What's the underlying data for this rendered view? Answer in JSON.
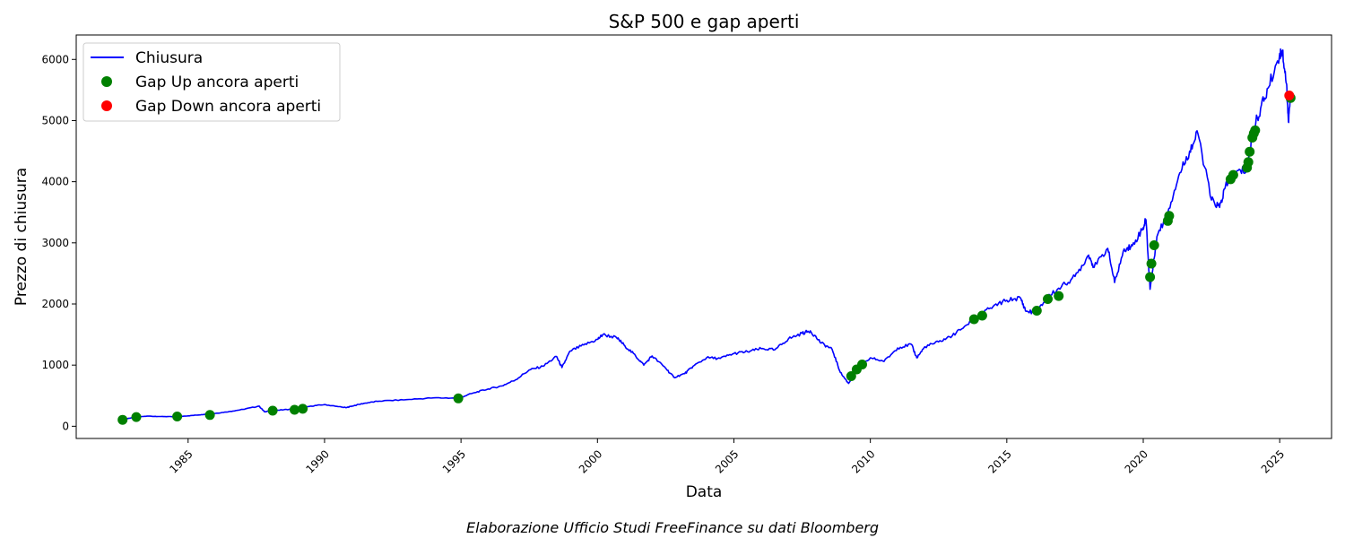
{
  "chart_data": {
    "type": "line",
    "title": "S&P 500 e gap aperti",
    "xlabel": "Data",
    "ylabel": "Prezzo di chiusura",
    "caption": "Elaborazione Ufficio Studi FreeFinance su dati Bloomberg",
    "xlim": [
      1980.9,
      2026.9
    ],
    "ylim": [
      -200,
      6400
    ],
    "x_ticks": [
      1985,
      1990,
      1995,
      2000,
      2005,
      2010,
      2015,
      2020,
      2025
    ],
    "x_tick_labels": [
      "1985",
      "1990",
      "1995",
      "2000",
      "2005",
      "2010",
      "2015",
      "2020",
      "2025"
    ],
    "x_tick_rotation": 45,
    "y_ticks": [
      0,
      1000,
      2000,
      3000,
      4000,
      5000,
      6000
    ],
    "y_tick_labels": [
      "0",
      "1000",
      "2000",
      "3000",
      "4000",
      "5000",
      "6000"
    ],
    "grid": false,
    "legend": {
      "placement": "top-left",
      "entries": [
        {
          "label": "Chiusura",
          "marker": "line",
          "color": "#0000ff"
        },
        {
          "label": "Gap Up ancora aperti",
          "marker": "dot",
          "color": "#008000"
        },
        {
          "label": "Gap Down ancora aperti",
          "marker": "dot",
          "color": "#ff0000"
        }
      ]
    },
    "series": [
      {
        "name": "Chiusura",
        "kind": "line",
        "color": "#0000ff",
        "points": [
          [
            1982.6,
            110
          ],
          [
            1983.0,
            145
          ],
          [
            1983.5,
            165
          ],
          [
            1984.0,
            160
          ],
          [
            1984.5,
            155
          ],
          [
            1985.0,
            170
          ],
          [
            1985.5,
            190
          ],
          [
            1986.0,
            210
          ],
          [
            1986.5,
            240
          ],
          [
            1987.0,
            275
          ],
          [
            1987.6,
            330
          ],
          [
            1987.8,
            235
          ],
          [
            1988.0,
            255
          ],
          [
            1988.5,
            270
          ],
          [
            1989.0,
            285
          ],
          [
            1989.5,
            330
          ],
          [
            1990.0,
            355
          ],
          [
            1990.5,
            320
          ],
          [
            1990.8,
            305
          ],
          [
            1991.0,
            330
          ],
          [
            1991.5,
            380
          ],
          [
            1992.0,
            410
          ],
          [
            1993.0,
            435
          ],
          [
            1994.0,
            465
          ],
          [
            1994.9,
            460
          ],
          [
            1995.5,
            550
          ],
          [
            1996.0,
            610
          ],
          [
            1996.5,
            660
          ],
          [
            1997.0,
            760
          ],
          [
            1997.5,
            920
          ],
          [
            1998.0,
            980
          ],
          [
            1998.5,
            1140
          ],
          [
            1998.7,
            960
          ],
          [
            1999.0,
            1230
          ],
          [
            1999.5,
            1330
          ],
          [
            2000.0,
            1420
          ],
          [
            2000.2,
            1500
          ],
          [
            2000.7,
            1450
          ],
          [
            2001.0,
            1320
          ],
          [
            2001.4,
            1150
          ],
          [
            2001.7,
            1000
          ],
          [
            2002.0,
            1150
          ],
          [
            2002.5,
            950
          ],
          [
            2002.8,
            800
          ],
          [
            2003.2,
            860
          ],
          [
            2003.5,
            980
          ],
          [
            2004.0,
            1120
          ],
          [
            2004.5,
            1110
          ],
          [
            2005.0,
            1190
          ],
          [
            2005.5,
            1220
          ],
          [
            2006.0,
            1270
          ],
          [
            2006.5,
            1250
          ],
          [
            2007.0,
            1430
          ],
          [
            2007.5,
            1520
          ],
          [
            2007.8,
            1560
          ],
          [
            2008.2,
            1360
          ],
          [
            2008.6,
            1260
          ],
          [
            2008.9,
            880
          ],
          [
            2009.2,
            700
          ],
          [
            2009.5,
            900
          ],
          [
            2010.0,
            1120
          ],
          [
            2010.5,
            1060
          ],
          [
            2011.0,
            1280
          ],
          [
            2011.5,
            1340
          ],
          [
            2011.7,
            1120
          ],
          [
            2012.0,
            1300
          ],
          [
            2012.5,
            1380
          ],
          [
            2013.0,
            1480
          ],
          [
            2013.5,
            1650
          ],
          [
            2014.0,
            1820
          ],
          [
            2014.5,
            1960
          ],
          [
            2015.0,
            2060
          ],
          [
            2015.5,
            2100
          ],
          [
            2015.7,
            1880
          ],
          [
            2016.1,
            1860
          ],
          [
            2016.5,
            2120
          ],
          [
            2017.0,
            2280
          ],
          [
            2017.5,
            2450
          ],
          [
            2018.0,
            2800
          ],
          [
            2018.2,
            2600
          ],
          [
            2018.7,
            2910
          ],
          [
            2018.95,
            2350
          ],
          [
            2019.3,
            2900
          ],
          [
            2019.6,
            2950
          ],
          [
            2020.0,
            3250
          ],
          [
            2020.1,
            3380
          ],
          [
            2020.25,
            2240
          ],
          [
            2020.5,
            3100
          ],
          [
            2020.9,
            3500
          ],
          [
            2021.3,
            4100
          ],
          [
            2021.7,
            4500
          ],
          [
            2022.0,
            4790
          ],
          [
            2022.5,
            3700
          ],
          [
            2022.8,
            3580
          ],
          [
            2023.0,
            3900
          ],
          [
            2023.4,
            4150
          ],
          [
            2023.8,
            4200
          ],
          [
            2024.0,
            4800
          ],
          [
            2024.3,
            5200
          ],
          [
            2024.6,
            5550
          ],
          [
            2025.0,
            6100
          ],
          [
            2025.1,
            6140
          ],
          [
            2025.25,
            5600
          ],
          [
            2025.32,
            4980
          ],
          [
            2025.4,
            5400
          ]
        ]
      },
      {
        "name": "Gap Up ancora aperti",
        "kind": "scatter",
        "color": "#008000",
        "points": [
          [
            1982.6,
            105
          ],
          [
            1983.1,
            150
          ],
          [
            1984.6,
            160
          ],
          [
            1985.8,
            185
          ],
          [
            1988.1,
            255
          ],
          [
            1988.9,
            270
          ],
          [
            1989.2,
            285
          ],
          [
            1994.9,
            455
          ],
          [
            2009.3,
            820
          ],
          [
            2009.5,
            930
          ],
          [
            2009.7,
            1010
          ],
          [
            2013.8,
            1750
          ],
          [
            2014.1,
            1810
          ],
          [
            2016.1,
            1890
          ],
          [
            2016.5,
            2080
          ],
          [
            2016.9,
            2130
          ],
          [
            2020.25,
            2440
          ],
          [
            2020.3,
            2660
          ],
          [
            2020.4,
            2960
          ],
          [
            2020.9,
            3360
          ],
          [
            2020.95,
            3440
          ],
          [
            2023.2,
            4040
          ],
          [
            2023.3,
            4110
          ],
          [
            2023.8,
            4230
          ],
          [
            2023.85,
            4320
          ],
          [
            2023.9,
            4490
          ],
          [
            2024.0,
            4720
          ],
          [
            2024.05,
            4790
          ],
          [
            2024.1,
            4840
          ],
          [
            2025.4,
            5370
          ]
        ]
      },
      {
        "name": "Gap Down ancora aperti",
        "kind": "scatter",
        "color": "#ff0000",
        "points": [
          [
            2025.35,
            5410
          ]
        ]
      }
    ]
  }
}
